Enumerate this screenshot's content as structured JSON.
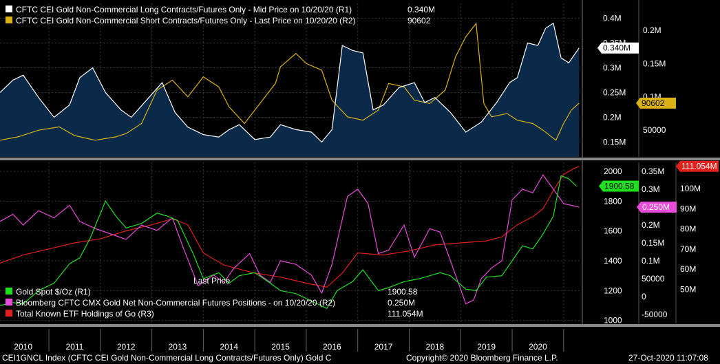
{
  "colors": {
    "background": "#000000",
    "area_fill": "#0b2a4a",
    "long": "#ffffff",
    "short": "#d9b215",
    "gold": "#1fe01f",
    "positions": "#e84bd9",
    "etf": "#e0201b",
    "grid": "#3a3a3a",
    "axis_text": "#ffffff"
  },
  "chart_data": [
    {
      "type": "area",
      "legend_placement": "top-left",
      "grid": true,
      "x_years": [
        "2010",
        "2011",
        "2012",
        "2013",
        "2014",
        "2015",
        "2016",
        "2017",
        "2018",
        "2019",
        "2020"
      ],
      "x_range": [
        2009.55,
        2020.85
      ],
      "right_axis_r1": {
        "ticks": [
          "0.15M",
          "0.2M",
          "0.25M",
          "0.3M",
          "0.35M",
          "0.4M"
        ],
        "values": [
          150000,
          200000,
          250000,
          300000,
          350000,
          400000
        ],
        "range": [
          120000,
          430000
        ]
      },
      "right_axis_r2": {
        "ticks": [
          "50000",
          "0.1M",
          "0.15M",
          "0.2M"
        ],
        "values": [
          50000,
          100000,
          150000,
          200000
        ],
        "range": [
          10000,
          240000
        ]
      },
      "series": [
        {
          "name": "CFTC CEI Gold Non-Commercial Long Contracts/Futures Only - Mid Price on 10/20/20 (R1)",
          "legend_value": "0.340M",
          "axis": "r1",
          "x": [
            2009.55,
            2009.8,
            2010.0,
            2010.3,
            2010.6,
            2010.9,
            2011.1,
            2011.35,
            2011.6,
            2011.9,
            2012.1,
            2012.4,
            2012.7,
            2012.95,
            2013.2,
            2013.5,
            2013.8,
            2014.0,
            2014.2,
            2014.5,
            2014.8,
            2015.0,
            2015.3,
            2015.6,
            2015.8,
            2016.0,
            2016.2,
            2016.4,
            2016.6,
            2016.8,
            2017.0,
            2017.3,
            2017.6,
            2017.8,
            2018.0,
            2018.3,
            2018.6,
            2018.9,
            2019.2,
            2019.45,
            2019.6,
            2019.8,
            2020.0,
            2020.15,
            2020.3,
            2020.45,
            2020.6,
            2020.8
          ],
          "values": [
            250000,
            275000,
            285000,
            240000,
            200000,
            225000,
            280000,
            300000,
            250000,
            215000,
            200000,
            235000,
            270000,
            210000,
            180000,
            165000,
            160000,
            175000,
            185000,
            155000,
            160000,
            185000,
            175000,
            170000,
            150000,
            175000,
            345000,
            335000,
            330000,
            215000,
            225000,
            260000,
            270000,
            230000,
            240000,
            210000,
            170000,
            190000,
            230000,
            270000,
            280000,
            350000,
            345000,
            380000,
            390000,
            320000,
            310000,
            340000
          ]
        },
        {
          "name": "CFTC CEI Gold Non-Commercial Short Contracts/Futures Only - Last Price on 10/20/20 (R2)",
          "legend_value": "90602",
          "axis": "r2",
          "x": [
            2009.55,
            2009.9,
            2010.3,
            2010.7,
            2011.0,
            2011.4,
            2011.8,
            2012.0,
            2012.3,
            2012.6,
            2012.9,
            2013.2,
            2013.5,
            2013.8,
            2014.0,
            2014.3,
            2014.6,
            2014.9,
            2015.0,
            2015.3,
            2015.5,
            2015.8,
            2016.0,
            2016.3,
            2016.6,
            2016.9,
            2017.1,
            2017.4,
            2017.6,
            2017.9,
            2018.2,
            2018.4,
            2018.6,
            2018.8,
            2018.95,
            2019.1,
            2019.4,
            2019.6,
            2019.9,
            2020.1,
            2020.35,
            2020.5,
            2020.65,
            2020.8
          ],
          "values": [
            35000,
            40000,
            50000,
            55000,
            42000,
            35000,
            40000,
            45000,
            60000,
            110000,
            125000,
            100000,
            130000,
            115000,
            85000,
            60000,
            90000,
            120000,
            145000,
            165000,
            150000,
            140000,
            95000,
            70000,
            65000,
            80000,
            120000,
            115000,
            95000,
            90000,
            110000,
            160000,
            190000,
            210000,
            90000,
            70000,
            75000,
            65000,
            60000,
            50000,
            35000,
            60000,
            80000,
            90602
          ]
        }
      ],
      "labels": {
        "long_last": "0.340M",
        "short_last": "90602"
      }
    },
    {
      "type": "line",
      "legend_placement": "bottom-left",
      "grid": true,
      "annotation": "Last Price",
      "x_years": [
        "2010",
        "2011",
        "2012",
        "2013",
        "2014",
        "2015",
        "2016",
        "2017",
        "2018",
        "2019",
        "2020"
      ],
      "x_range": [
        2009.55,
        2020.85
      ],
      "axis_r1": {
        "ticks": [
          "1000",
          "1200",
          "1400",
          "1600",
          "1800",
          "2000"
        ],
        "values": [
          1000,
          1200,
          1400,
          1600,
          1800,
          2000
        ],
        "range": [
          980,
          2060
        ]
      },
      "axis_r2": {
        "ticks": [
          "-50000",
          "0",
          "50000",
          "0.1M",
          "0.15M",
          "0.2M",
          "0.25M",
          "0.3M",
          "0.35M"
        ],
        "values": [
          -50000,
          0,
          50000,
          100000,
          150000,
          200000,
          250000,
          300000,
          350000
        ],
        "range": [
          -75000,
          375000
        ]
      },
      "axis_r3": {
        "ticks": [
          "50M",
          "60M",
          "70M",
          "80M",
          "90M",
          "100M"
        ],
        "values": [
          50000000,
          60000000,
          70000000,
          80000000,
          90000000,
          100000000
        ],
        "range": [
          33000000,
          113000000
        ]
      },
      "series": [
        {
          "name": "Gold Spot  $/Oz  (R1)",
          "legend_value": "1900.58",
          "axis": "r1",
          "x": [
            2009.55,
            2009.8,
            2010.0,
            2010.3,
            2010.6,
            2010.9,
            2011.1,
            2011.3,
            2011.6,
            2011.8,
            2012.0,
            2012.3,
            2012.6,
            2012.8,
            2013.0,
            2013.3,
            2013.5,
            2013.8,
            2014.0,
            2014.2,
            2014.5,
            2014.8,
            2015.0,
            2015.3,
            2015.6,
            2015.9,
            2016.1,
            2016.4,
            2016.6,
            2016.9,
            2017.1,
            2017.4,
            2017.7,
            2017.9,
            2018.1,
            2018.3,
            2018.6,
            2018.8,
            2019.0,
            2019.3,
            2019.5,
            2019.7,
            2019.9,
            2020.1,
            2020.3,
            2020.45,
            2020.6,
            2020.75
          ],
          "values": [
            1100,
            1120,
            1110,
            1200,
            1250,
            1380,
            1420,
            1550,
            1800,
            1700,
            1620,
            1650,
            1720,
            1700,
            1670,
            1450,
            1280,
            1320,
            1250,
            1300,
            1320,
            1250,
            1200,
            1180,
            1130,
            1080,
            1200,
            1260,
            1340,
            1200,
            1220,
            1260,
            1280,
            1300,
            1320,
            1300,
            1210,
            1200,
            1290,
            1300,
            1400,
            1500,
            1480,
            1580,
            1700,
            1970,
            1950,
            1900.58
          ]
        },
        {
          "name": "Bloomberg CFTC CMX Gold Net Non-Commercial Futures Positions -  on 10/20/20  (R2)",
          "legend_value": "0.250M",
          "axis": "r2",
          "x": [
            2009.55,
            2009.8,
            2010.0,
            2010.3,
            2010.6,
            2010.9,
            2011.1,
            2011.4,
            2011.7,
            2012.0,
            2012.3,
            2012.6,
            2012.9,
            2013.1,
            2013.4,
            2013.7,
            2013.9,
            2014.1,
            2014.4,
            2014.6,
            2014.8,
            2015.0,
            2015.3,
            2015.6,
            2015.8,
            2016.0,
            2016.3,
            2016.5,
            2016.7,
            2016.9,
            2017.1,
            2017.4,
            2017.6,
            2017.9,
            2018.1,
            2018.4,
            2018.6,
            2018.75,
            2018.9,
            2019.1,
            2019.3,
            2019.5,
            2019.7,
            2019.9,
            2020.1,
            2020.3,
            2020.5,
            2020.8
          ],
          "values": [
            210000,
            230000,
            200000,
            240000,
            220000,
            255000,
            210000,
            190000,
            175000,
            160000,
            200000,
            185000,
            220000,
            140000,
            30000,
            60000,
            40000,
            80000,
            120000,
            60000,
            40000,
            100000,
            90000,
            60000,
            10000,
            90000,
            280000,
            300000,
            260000,
            120000,
            130000,
            200000,
            110000,
            190000,
            180000,
            60000,
            -20000,
            -10000,
            50000,
            80000,
            100000,
            270000,
            300000,
            290000,
            340000,
            300000,
            260000,
            250000
          ]
        },
        {
          "name": "Total Known ETF Holdings of Go  (R3)",
          "legend_value": "111.054M",
          "axis": "r3",
          "x": [
            2009.55,
            2010.0,
            2010.5,
            2011.0,
            2011.5,
            2012.0,
            2012.5,
            2012.9,
            2013.2,
            2013.5,
            2013.9,
            2014.5,
            2015.0,
            2015.5,
            2015.9,
            2016.2,
            2016.5,
            2017.0,
            2017.5,
            2018.0,
            2018.5,
            2019.0,
            2019.3,
            2019.6,
            2019.9,
            2020.1,
            2020.3,
            2020.5,
            2020.7,
            2020.8
          ],
          "values": [
            63000000,
            67000000,
            70000000,
            73000000,
            75000000,
            79000000,
            82000000,
            85000000,
            82000000,
            68000000,
            62000000,
            58000000,
            56000000,
            53000000,
            51000000,
            58000000,
            68000000,
            67000000,
            69000000,
            72000000,
            73000000,
            74000000,
            76000000,
            82000000,
            86000000,
            90000000,
            99000000,
            107000000,
            110000000,
            111054000
          ]
        }
      ],
      "labels": {
        "gold_last": "1900.58",
        "positions_last": "0.250M",
        "etf_last": "111.054M"
      }
    }
  ],
  "footer": {
    "ticker": "CEI1GNCL Index (CFTC CEI Gold Non-Commercial Long Contracts/Futures Only) Gold C",
    "copyright": "Copyright© 2020 Bloomberg Finance L.P.",
    "timestamp": "27-Oct-2020 11:07:08"
  }
}
